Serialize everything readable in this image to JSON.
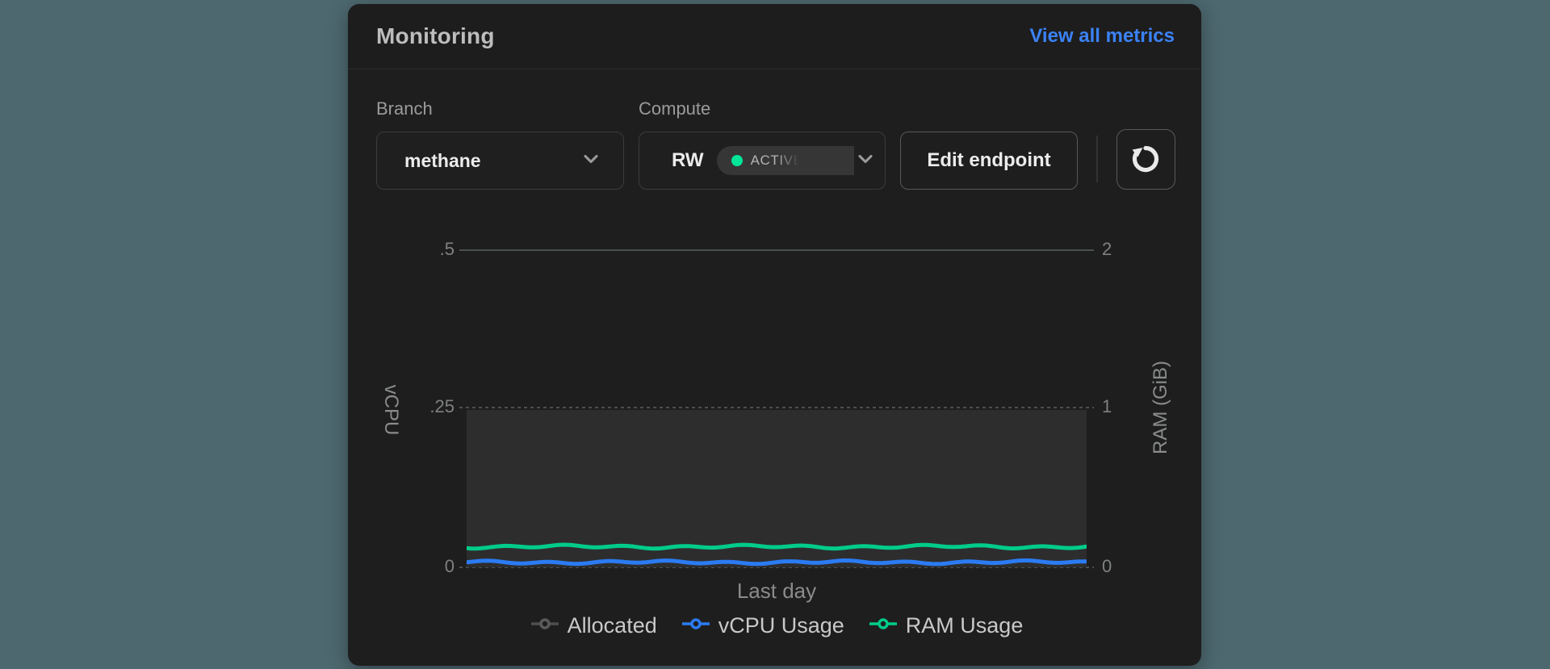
{
  "header": {
    "title": "Monitoring",
    "view_all_link": "View all metrics"
  },
  "controls": {
    "branch_label": "Branch",
    "branch_value": "methane",
    "compute_label": "Compute",
    "compute_value": "RW",
    "compute_status": "ACTIVE",
    "edit_button": "Edit endpoint"
  },
  "colors": {
    "page_background": "#4d686f",
    "card_background": "#1e1e1e",
    "link_blue": "#3b82f6",
    "status_green": "#00e599",
    "vcpu_line": "#2b7bf3",
    "ram_line": "#00cc8a",
    "allocated_gray": "#555555",
    "allocated_fill": "#2d2d2d"
  },
  "chart_data": {
    "type": "line",
    "xlabel": "Last day",
    "grid": true,
    "legend_position": "bottom",
    "y_left": {
      "label": "vCPU",
      "range": [
        0,
        0.5
      ],
      "ticks": [
        ".5",
        ".25",
        "0"
      ]
    },
    "y_right": {
      "label": "RAM (GiB)",
      "range": [
        0,
        2
      ],
      "ticks": [
        "2",
        "1",
        "0"
      ]
    },
    "series": [
      {
        "name": "Allocated",
        "type": "area",
        "axis": "left",
        "color": "#555555",
        "value_vcpu": 0.25,
        "value_ram_gib": 1.0,
        "shape": "constant"
      },
      {
        "name": "vCPU Usage",
        "type": "line",
        "axis": "left",
        "color": "#2b7bf3",
        "value_vcpu": 0.008,
        "shape": "flat-noisy"
      },
      {
        "name": "RAM Usage",
        "type": "line",
        "axis": "right",
        "color": "#00cc8a",
        "value_ram_gib": 0.13,
        "shape": "flat-noisy"
      }
    ],
    "legend": [
      "Allocated",
      "vCPU Usage",
      "RAM Usage"
    ]
  }
}
